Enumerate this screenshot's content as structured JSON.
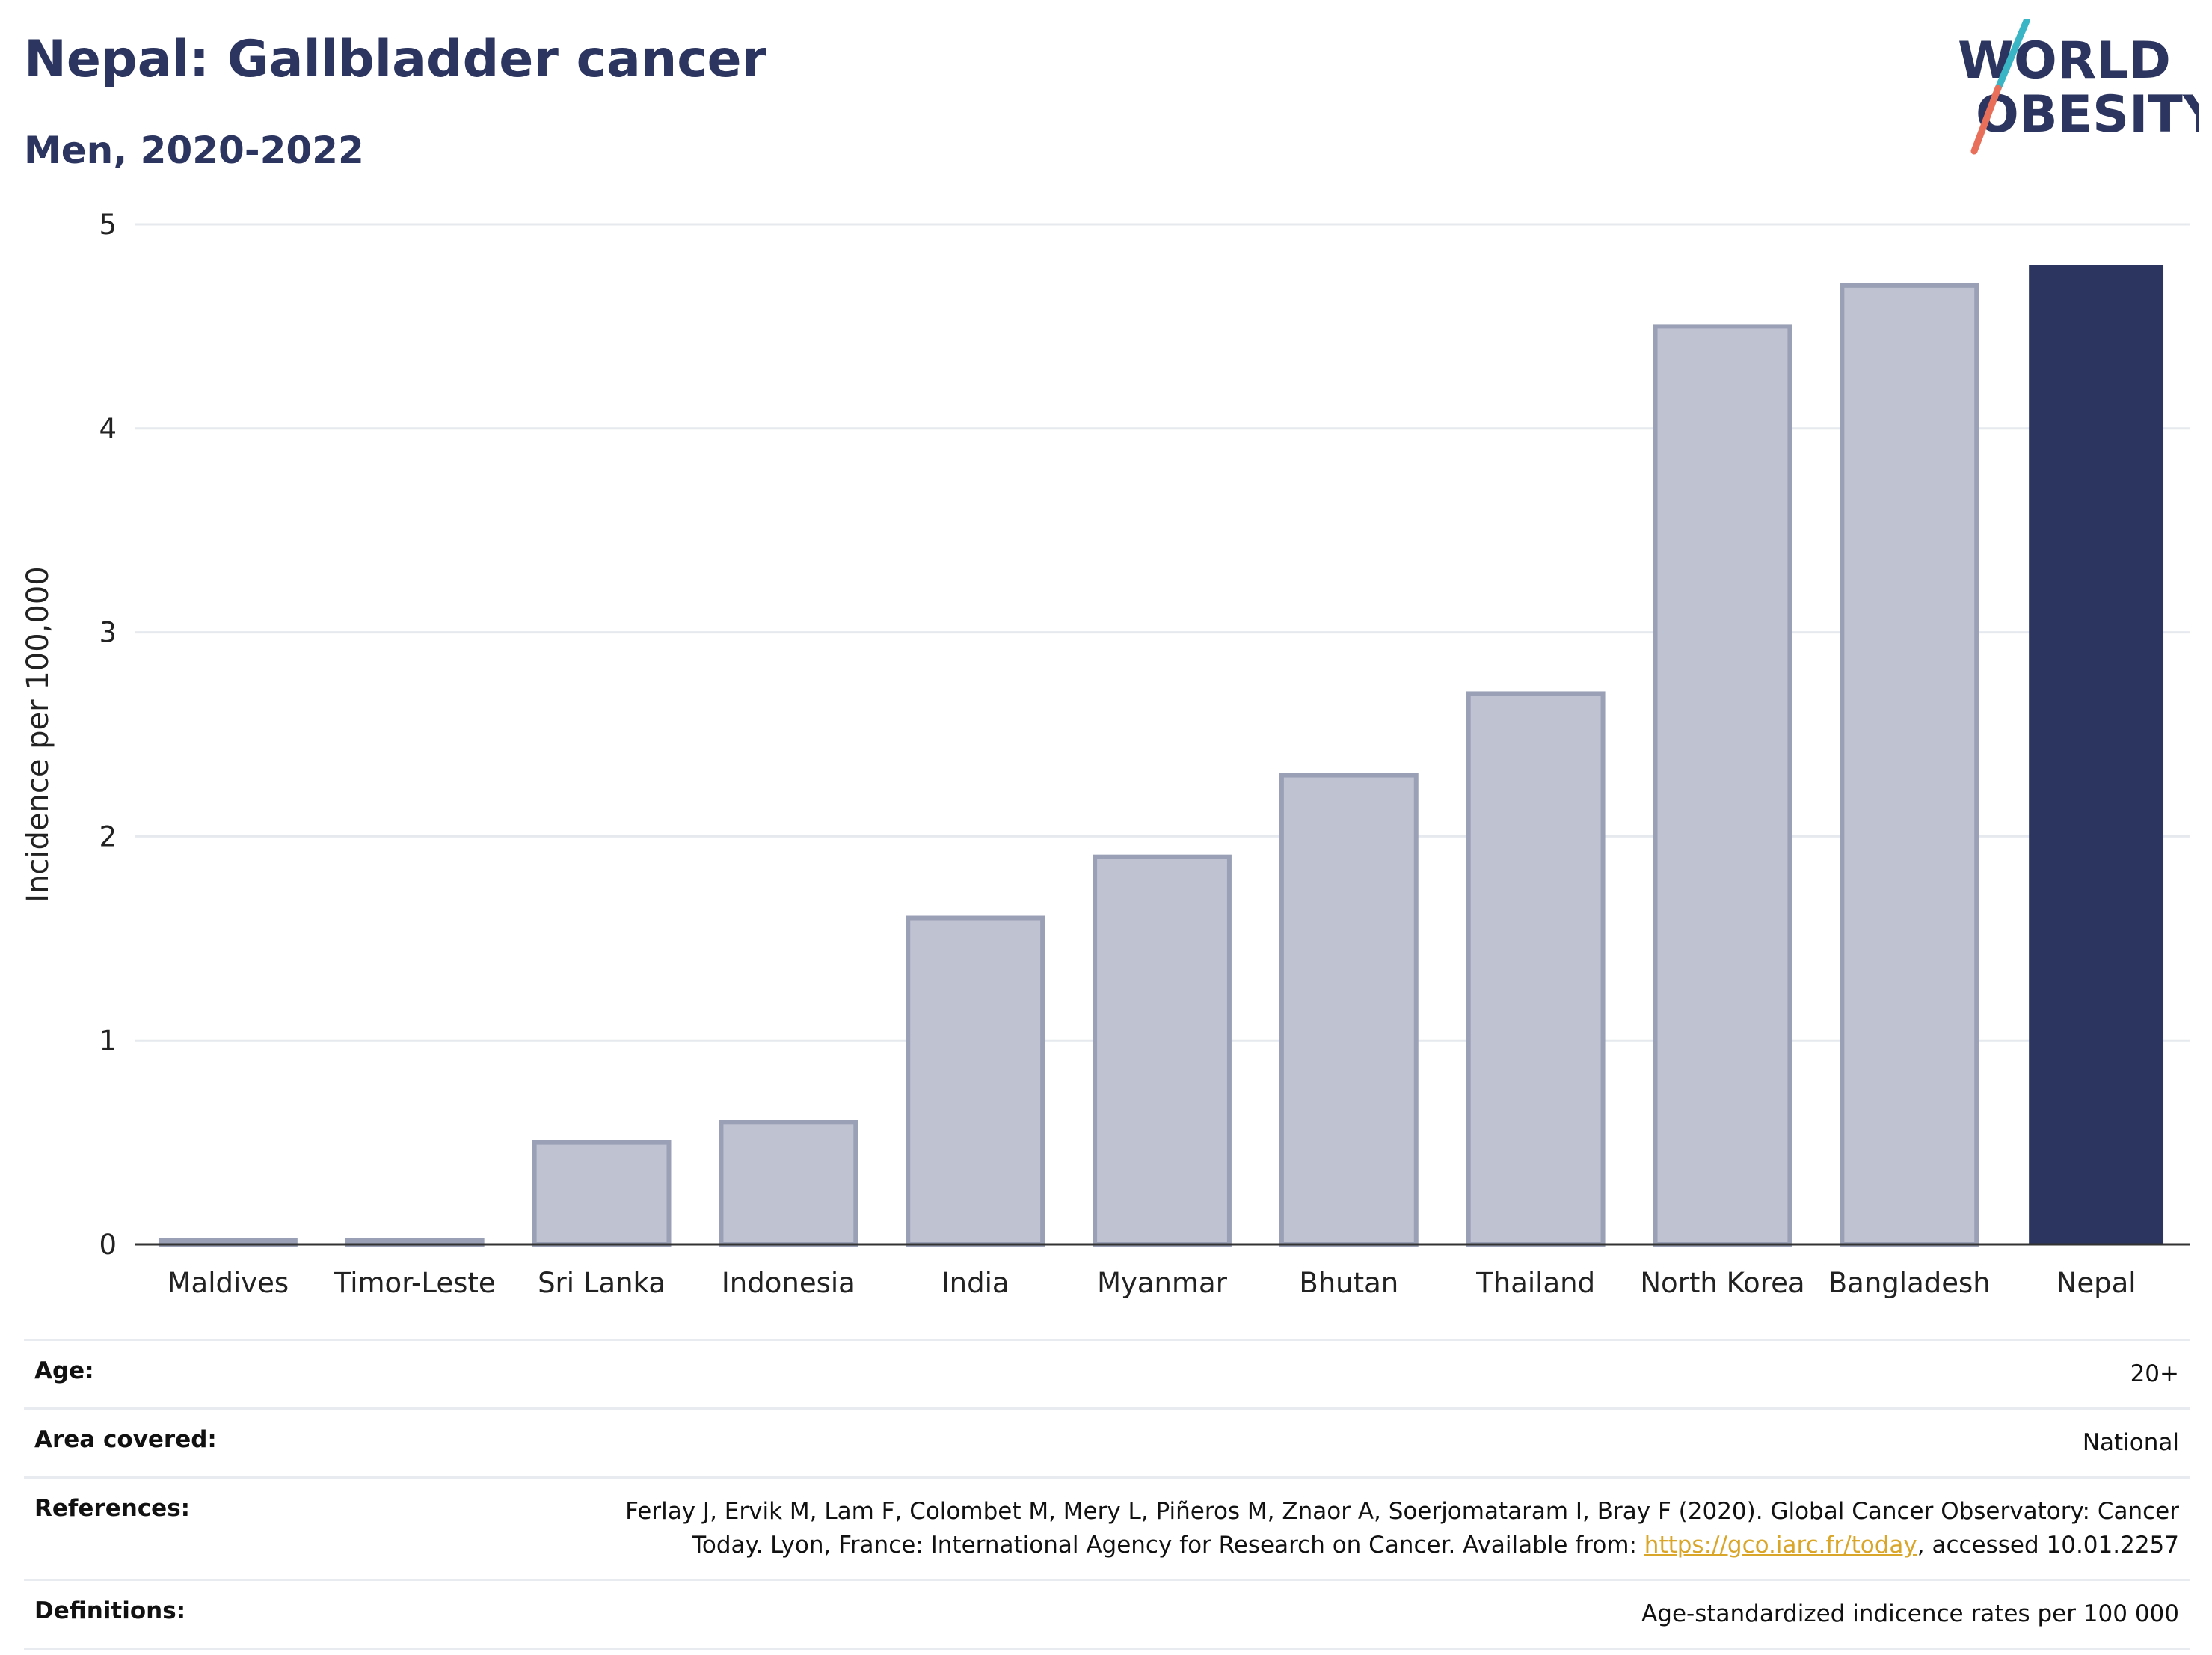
{
  "header": {
    "title": "Nepal: Gallbladder cancer",
    "subtitle": "Men, 2020-2022"
  },
  "logo": {
    "line1": "WORLD",
    "line2": "OBESITY",
    "slash_color_top": "#39b5c5",
    "slash_color_bottom": "#e8705a"
  },
  "chart_data": {
    "type": "bar",
    "categories": [
      "Maldives",
      "Timor-Leste",
      "Sri Lanka",
      "Indonesia",
      "India",
      "Myanmar",
      "Bhutan",
      "Thailand",
      "North Korea",
      "Bangladesh",
      "Nepal"
    ],
    "values": [
      0.0,
      0.0,
      0.5,
      0.6,
      1.6,
      1.9,
      2.3,
      2.7,
      4.5,
      4.7,
      4.8
    ],
    "highlight": "Nepal",
    "ylabel": "Incidence per 100,000",
    "xlabel": "",
    "ylim": [
      0,
      5
    ],
    "yticks": [
      0,
      1,
      2,
      3,
      4,
      5
    ],
    "grid": true,
    "legend": "none",
    "colors": {
      "bar": "#bfc2d0",
      "bar_stroke": "#9aa0b6",
      "highlight": "#2b355f",
      "grid": "#e6eaee",
      "axis": "#333333"
    }
  },
  "meta": {
    "age_label": "Age:",
    "age_value": "20+",
    "area_label": "Area covered:",
    "area_value": "National",
    "references_label": "References:",
    "references_text_1": "Ferlay J, Ervik M, Lam F, Colombet M, Mery L, Piñeros M, Znaor A, Soerjomataram I, Bray F (2020). Global Cancer Observatory: Cancer Today. Lyon, France: International Agency for Research on Cancer. Available from: ",
    "references_link": "https://gco.iarc.fr/today",
    "references_text_2": ", accessed 10.01.2257",
    "definitions_label": "Definitions:",
    "definitions_value": "Age-standardized indicence rates per 100 000"
  }
}
